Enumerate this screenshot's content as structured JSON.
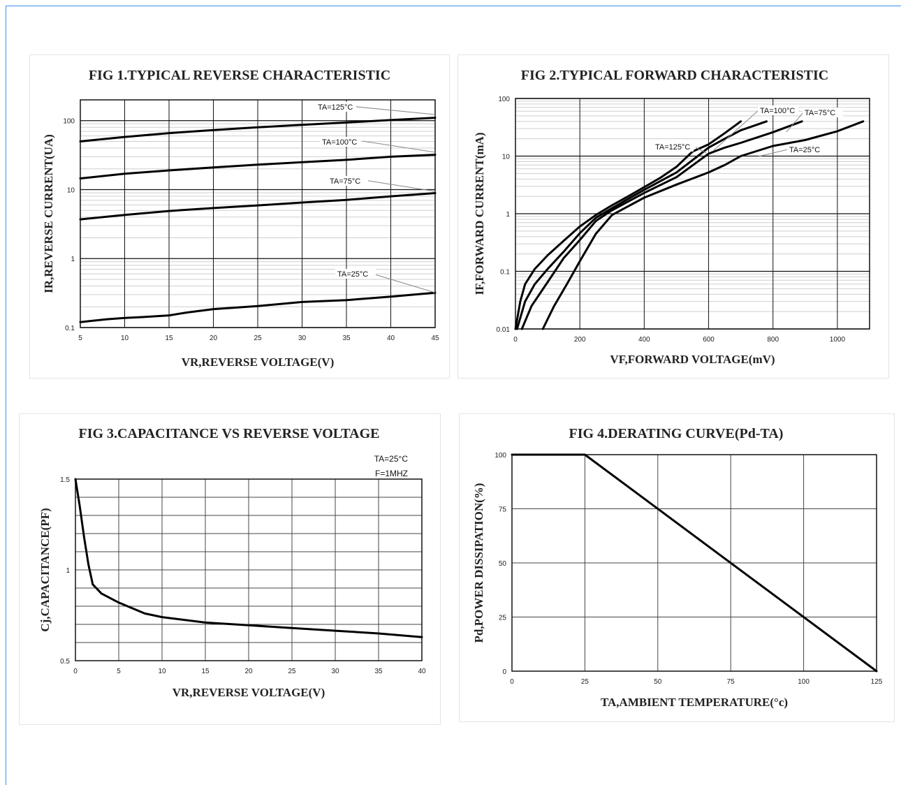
{
  "chart_data": [
    {
      "id": "fig1",
      "type": "line",
      "title": "FIG 1.TYPICAL REVERSE CHARACTERISTIC",
      "xlabel": "VR,REVERSE VOLTAGE(V)",
      "ylabel": "IR,REVERSE CURRENT(UA)",
      "xlim": [
        5,
        45
      ],
      "ylim": [
        0.1,
        200
      ],
      "yscale": "log",
      "xticks": [
        "5",
        "10",
        "15",
        "20",
        "25",
        "30",
        "35",
        "40",
        "45"
      ],
      "yticks": [
        "0.1",
        "1",
        "10",
        "100"
      ],
      "grid": true,
      "series": [
        {
          "name": "TA=125°C",
          "x": [
            5,
            10,
            15,
            20,
            25,
            30,
            35,
            40,
            45
          ],
          "y": [
            50,
            58,
            66,
            73,
            80,
            87,
            94,
            102,
            110
          ]
        },
        {
          "name": "TA=100°C",
          "x": [
            5,
            10,
            15,
            20,
            25,
            30,
            35,
            40,
            45
          ],
          "y": [
            14.5,
            17,
            19,
            21,
            23,
            25,
            27,
            30,
            32
          ]
        },
        {
          "name": "TA=75°C",
          "x": [
            5,
            10,
            15,
            20,
            25,
            30,
            35,
            40,
            45
          ],
          "y": [
            3.7,
            4.3,
            4.9,
            5.4,
            5.9,
            6.5,
            7.1,
            8.0,
            8.9
          ]
        },
        {
          "name": "TA=25°C",
          "x": [
            5,
            8,
            10,
            12,
            15,
            17,
            20,
            25,
            30,
            35,
            40,
            45
          ],
          "y": [
            0.12,
            0.132,
            0.138,
            0.142,
            0.15,
            0.165,
            0.185,
            0.205,
            0.235,
            0.25,
            0.28,
            0.32
          ]
        }
      ]
    },
    {
      "id": "fig2",
      "type": "line",
      "title": "FIG 2.TYPICAL FORWARD CHARACTERISTIC",
      "xlabel": "VF,FORWARD VOLTAGE(mV)",
      "ylabel": "IF,FORWARD CURRENT(mA)",
      "xlim": [
        0,
        1100
      ],
      "ylim": [
        0.01,
        100
      ],
      "yscale": "log",
      "xticks": [
        "0",
        "200",
        "400",
        "600",
        "800",
        "1000"
      ],
      "yticks": [
        "0.01",
        "0.1",
        "1",
        "10",
        "100"
      ],
      "grid": true,
      "series": [
        {
          "name": "TA=125°C",
          "x": [
            0,
            15,
            30,
            60,
            100,
            150,
            200,
            250,
            300,
            350,
            400,
            450,
            500,
            550,
            600,
            650,
            700
          ],
          "y": [
            0.01,
            0.03,
            0.06,
            0.11,
            0.19,
            0.34,
            0.6,
            0.95,
            1.4,
            2.0,
            2.9,
            4.2,
            6.5,
            12,
            16,
            25,
            40
          ]
        },
        {
          "name": "TA=100°C",
          "x": [
            5,
            30,
            60,
            100,
            150,
            200,
            250,
            300,
            400,
            500,
            550,
            600,
            650,
            700,
            780
          ],
          "y": [
            0.01,
            0.03,
            0.06,
            0.11,
            0.22,
            0.46,
            0.85,
            1.25,
            2.6,
            5.2,
            8.5,
            14,
            20,
            28,
            40
          ]
        },
        {
          "name": "TA=75°C",
          "x": [
            20,
            50,
            100,
            150,
            200,
            250,
            300,
            400,
            500,
            600,
            650,
            700,
            800,
            890
          ],
          "y": [
            0.01,
            0.025,
            0.065,
            0.17,
            0.35,
            0.75,
            1.15,
            2.3,
            4.3,
            11,
            14,
            17,
            26,
            40
          ]
        },
        {
          "name": "TA=25°C",
          "x": [
            85,
            120,
            160,
            200,
            250,
            300,
            400,
            500,
            600,
            650,
            700,
            800,
            900,
            1000,
            1080
          ],
          "y": [
            0.01,
            0.025,
            0.06,
            0.15,
            0.45,
            0.95,
            1.9,
            3.2,
            5.2,
            7.0,
            10,
            15,
            19,
            27,
            40
          ]
        }
      ]
    },
    {
      "id": "fig3",
      "type": "line",
      "title": "FIG 3.CAPACITANCE VS REVERSE VOLTAGE",
      "xlabel": "VR,REVERSE VOLTAGE(V)",
      "ylabel": "Cj,CAPACITANCE(PF)",
      "annotations": [
        "TA=25°C",
        "F=1MHZ"
      ],
      "xlim": [
        0,
        40
      ],
      "ylim": [
        0.5,
        1.5
      ],
      "xticks": [
        "0",
        "5",
        "10",
        "15",
        "20",
        "25",
        "30",
        "35",
        "40"
      ],
      "yticks": [
        "0.5",
        "1",
        "1.5"
      ],
      "grid": true,
      "series": [
        {
          "name": "",
          "x": [
            0,
            0.5,
            1,
            1.5,
            2,
            3,
            5,
            8,
            10,
            15,
            20,
            25,
            30,
            35,
            40
          ],
          "y": [
            1.5,
            1.35,
            1.18,
            1.03,
            0.92,
            0.87,
            0.82,
            0.76,
            0.74,
            0.71,
            0.695,
            0.68,
            0.665,
            0.65,
            0.63
          ]
        }
      ]
    },
    {
      "id": "fig4",
      "type": "line",
      "title": "FIG 4.DERATING CURVE(Pd-TA)",
      "xlabel": "TA,AMBIENT TEMPERATURE(°c)",
      "ylabel": "Pd,POWER DISSIPATION(%)",
      "xlim": [
        0,
        125
      ],
      "ylim": [
        0,
        100
      ],
      "xticks": [
        "0",
        "25",
        "50",
        "75",
        "100",
        "125"
      ],
      "yticks": [
        "0",
        "25",
        "50",
        "75",
        "100"
      ],
      "grid": true,
      "series": [
        {
          "name": "",
          "x": [
            0,
            25,
            125
          ],
          "y": [
            100,
            100,
            0
          ]
        }
      ]
    }
  ]
}
